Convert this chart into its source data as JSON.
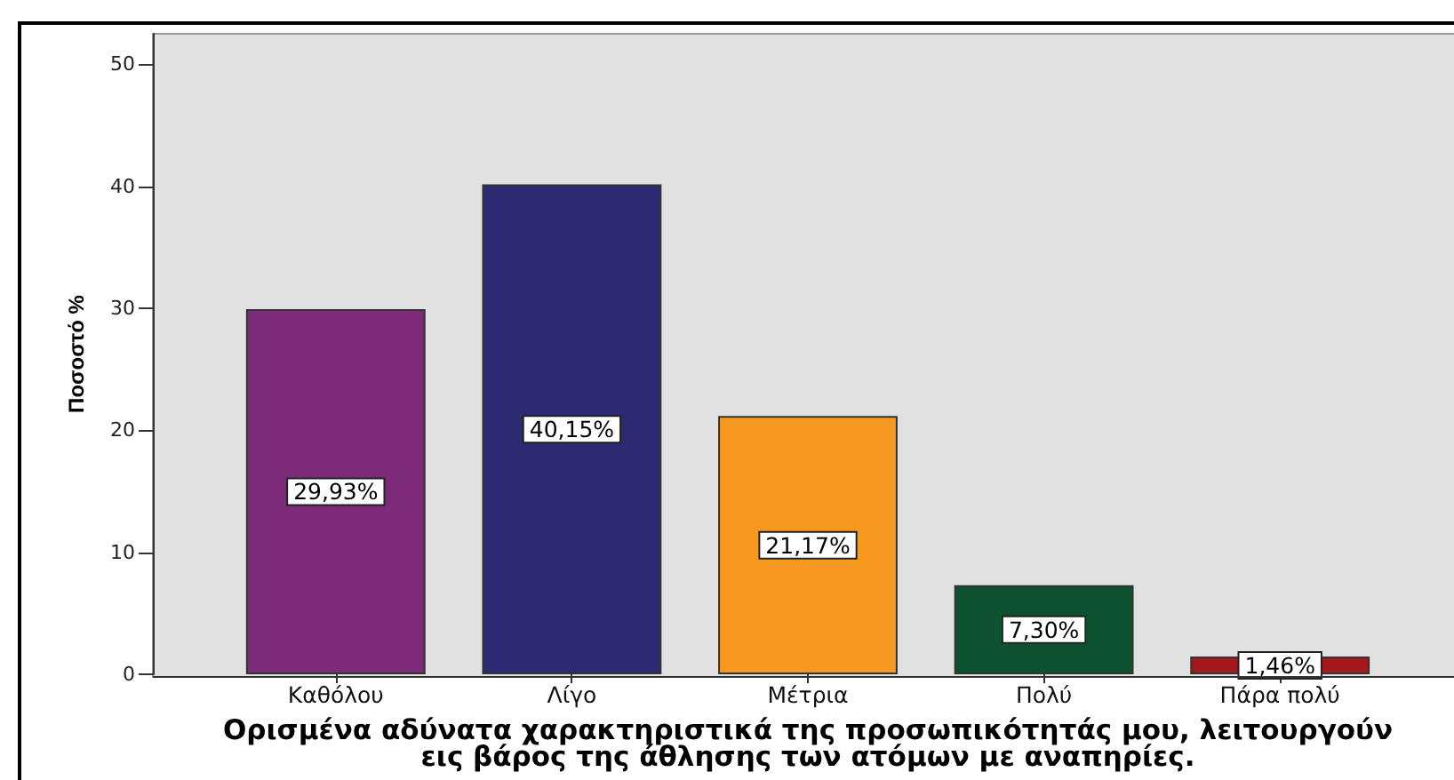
{
  "chart_data": {
    "type": "bar",
    "xlabel": "Ορισμένα αδύνατα χαρακτηριστικά της προσωπικότητάς μου, λειτουργούν\nεις βάρος της άθλησης των ατόμων με αναπηρίες.",
    "ylabel": "Ποσοστό %",
    "categories": [
      "Καθόλου",
      "Λίγο",
      "Μέτρια",
      "Πολύ",
      "Πάρα πολύ"
    ],
    "values": [
      29.93,
      40.15,
      21.17,
      7.3,
      1.46
    ],
    "colors": [
      "#7d2a7b",
      "#2b2a72",
      "#f7991f",
      "#0c5230",
      "#a3191c"
    ],
    "value_labels": [
      "29,93%",
      "40,15%",
      "21,17%",
      "7,30%",
      "1,46%"
    ],
    "ylim": [
      0,
      52.5
    ],
    "yticks": [
      0,
      10,
      20,
      30,
      40,
      50
    ]
  }
}
